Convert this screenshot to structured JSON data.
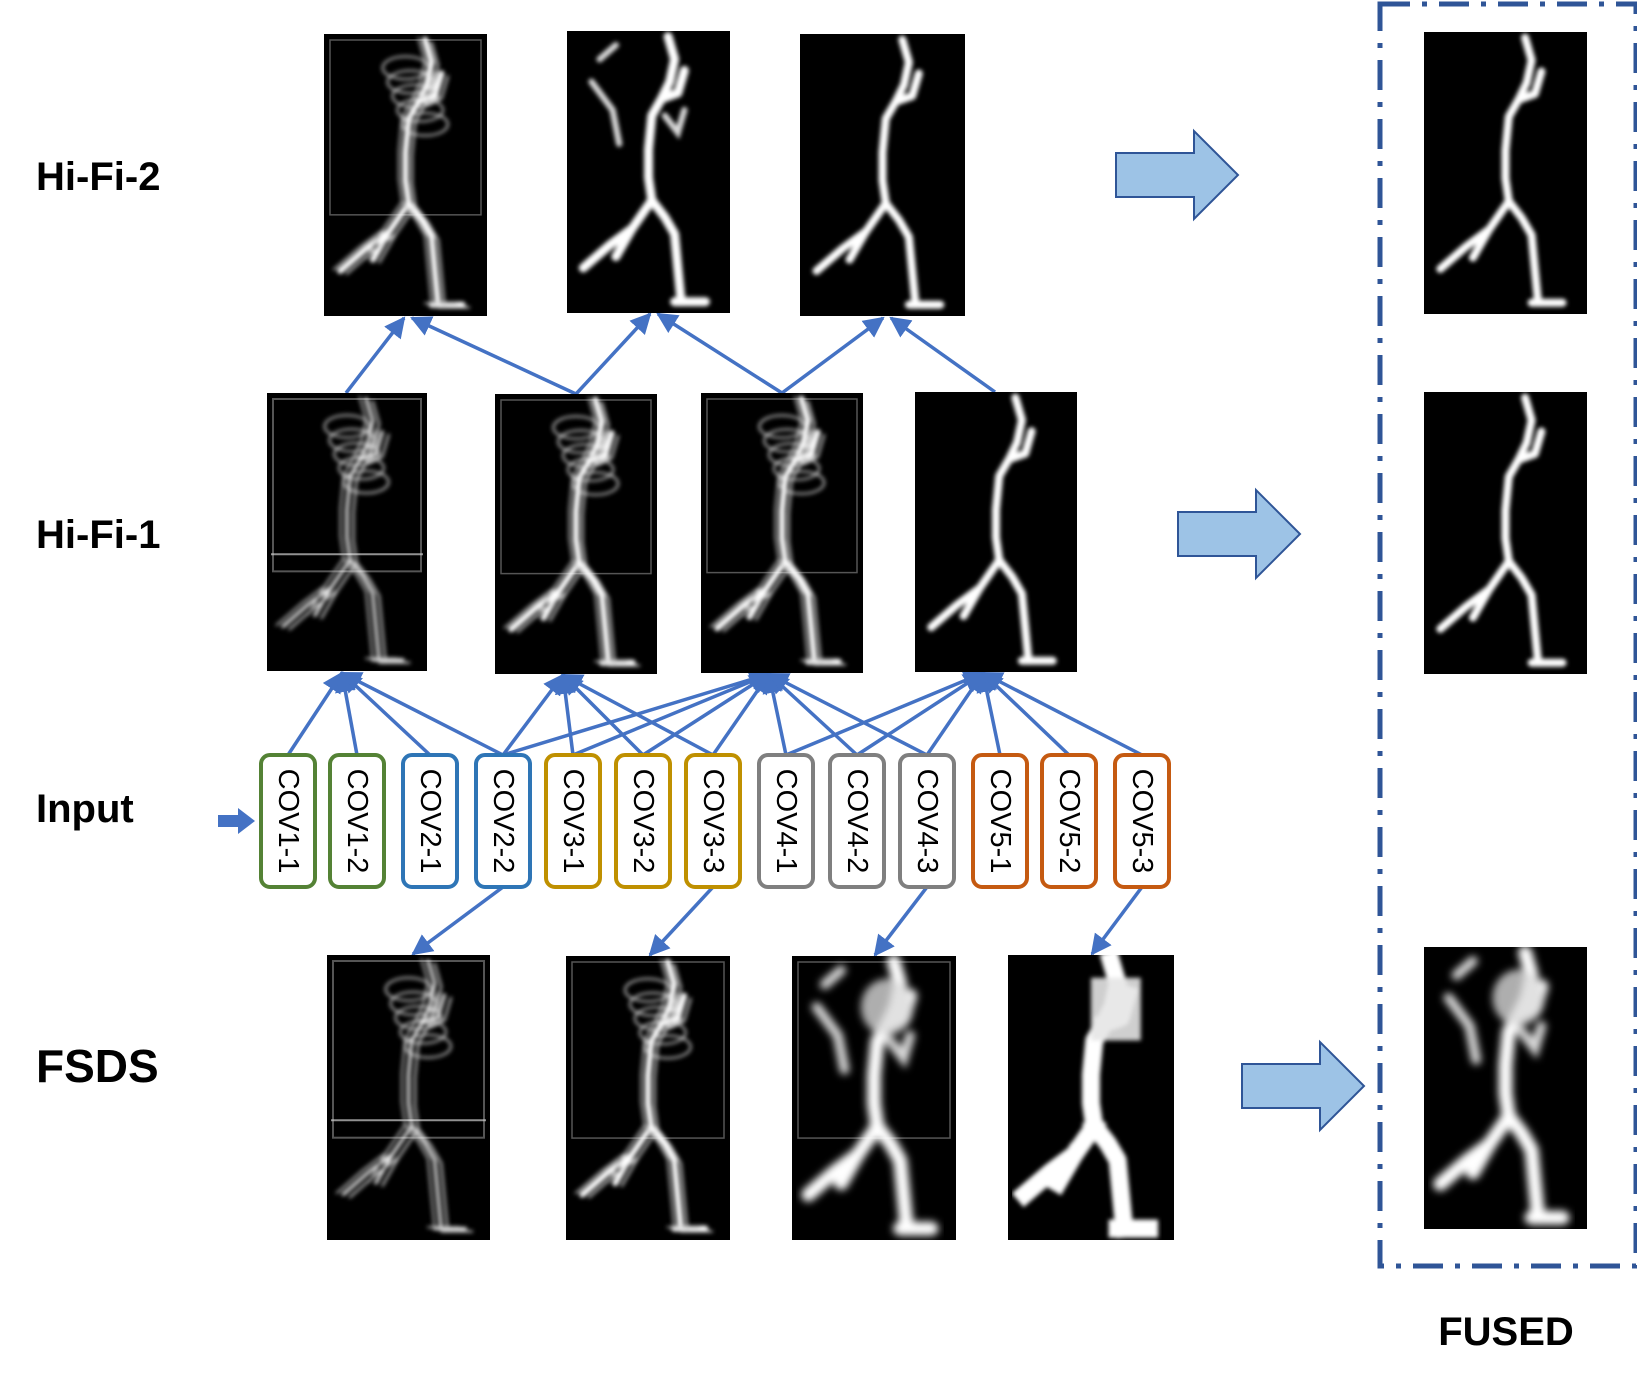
{
  "rows": {
    "hifi2": "Hi-Fi-2",
    "hifi1": "Hi-Fi-1",
    "input": "Input",
    "fsds": "FSDS"
  },
  "fused_label": "FUSED",
  "convs": [
    {
      "label": "COV1-1",
      "color": "#548235"
    },
    {
      "label": "COV1-2",
      "color": "#548235"
    },
    {
      "label": "COV2-1",
      "color": "#2E75B6"
    },
    {
      "label": "COV2-2",
      "color": "#2E75B6"
    },
    {
      "label": "COV3-1",
      "color": "#BF9000"
    },
    {
      "label": "COV3-2",
      "color": "#BF9000"
    },
    {
      "label": "COV3-3",
      "color": "#BF9000"
    },
    {
      "label": "COV4-1",
      "color": "#7F7F7F"
    },
    {
      "label": "COV4-2",
      "color": "#7F7F7F"
    },
    {
      "label": "COV4-3",
      "color": "#7F7F7F"
    },
    {
      "label": "COV5-1",
      "color": "#C55A11"
    },
    {
      "label": "COV5-2",
      "color": "#C55A11"
    },
    {
      "label": "COV5-3",
      "color": "#C55A11"
    }
  ],
  "colors": {
    "edge": "#4472C4",
    "block_arrow_fill": "#9DC3E6",
    "block_arrow_stroke": "#2F5597",
    "fused_frame": "#2F5597",
    "map_bg": "#000000",
    "map_line": "#ffffff"
  }
}
